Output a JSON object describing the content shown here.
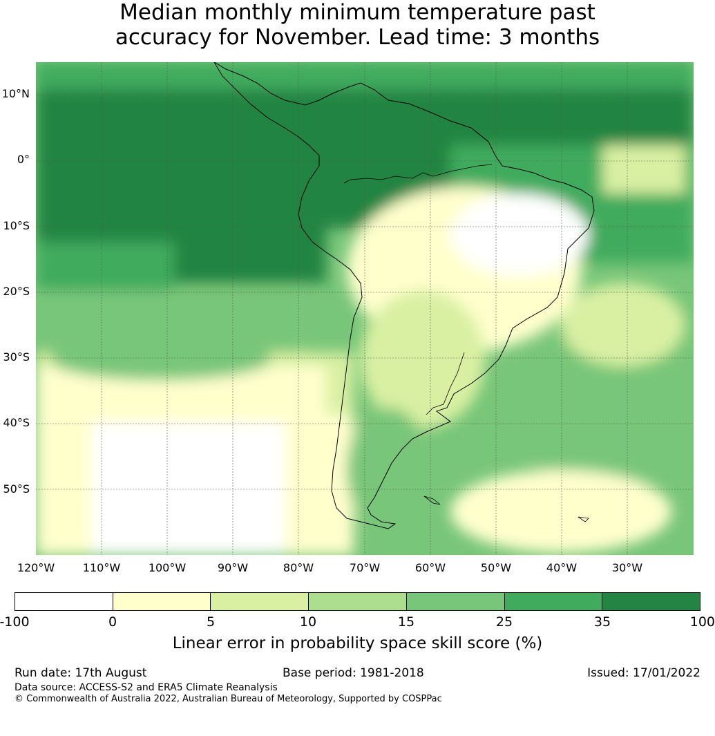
{
  "title_line1": "Median monthly minimum temperature past",
  "title_line2": "accuracy for November. Lead time: 3 months",
  "map": {
    "lat_labels": [
      "10°N",
      "0°",
      "10°S",
      "20°S",
      "30°S",
      "40°S",
      "50°S"
    ],
    "lon_labels": [
      "120°W",
      "110°W",
      "100°W",
      "90°W",
      "80°W",
      "70°W",
      "60°W",
      "50°W",
      "40°W",
      "30°W"
    ],
    "lat_range": [
      -60,
      15
    ],
    "lon_range": [
      -120,
      -20
    ]
  },
  "colorbar": {
    "ticks": [
      "-100",
      "0",
      "5",
      "10",
      "15",
      "25",
      "35",
      "100"
    ],
    "colors": [
      "#ffffff",
      "#ffffcc",
      "#d9f0a3",
      "#addd8e",
      "#78c679",
      "#41ab5d",
      "#238443"
    ],
    "label": "Linear error in probability space skill score (%)"
  },
  "footer": {
    "run_date": "Run date: 17th August",
    "base_period": "Base period: 1981-2018",
    "issued": "Issued: 17/01/2022",
    "data_source": "Data source: ACCESS-S2 and ERA5 Climate Reanalysis",
    "copyright": "© Commonwealth of Australia 2022, Australian Bureau of Meteorology, Supported by COSPPac"
  }
}
